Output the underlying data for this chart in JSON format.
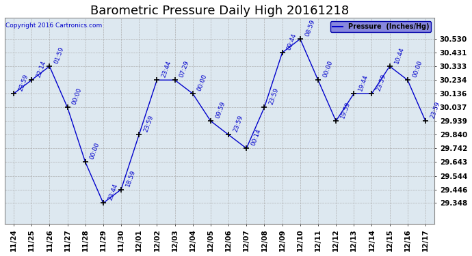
{
  "title": "Barometric Pressure Daily High 20161218",
  "copyright": "Copyright 2016 Cartronics.com",
  "legend_label": "Pressure  (Inches/Hg)",
  "background_color": "#ffffff",
  "plot_background": "#dde8f0",
  "line_color": "#0000cc",
  "marker_color": "#000000",
  "text_color": "#0000cc",
  "dates": [
    "11/24",
    "11/25",
    "11/26",
    "11/27",
    "11/28",
    "11/29",
    "11/30",
    "12/01",
    "12/02",
    "12/03",
    "12/04",
    "12/05",
    "12/06",
    "12/07",
    "12/08",
    "12/09",
    "12/10",
    "12/11",
    "12/12",
    "12/13",
    "12/14",
    "12/15",
    "12/16",
    "12/17"
  ],
  "values": [
    30.136,
    30.234,
    30.333,
    30.037,
    29.643,
    29.348,
    29.446,
    29.84,
    30.234,
    30.234,
    30.136,
    29.939,
    29.84,
    29.742,
    30.037,
    30.431,
    30.53,
    30.234,
    29.939,
    30.136,
    30.136,
    30.333,
    30.234,
    29.939
  ],
  "annotations": [
    "23:59",
    "22:14",
    "01:59",
    "00:00",
    "00:00",
    "23:44",
    "18:59",
    "23:59",
    "23:44",
    "07:29",
    "00:00",
    "09:59",
    "23:59",
    "00:14",
    "23:59",
    "09:44",
    "08:59",
    "00:00",
    "19:59",
    "19:44",
    "23:59",
    "10:44",
    "00:00",
    "23:59"
  ],
  "ylim": [
    29.2,
    30.68
  ],
  "yticks": [
    30.53,
    30.431,
    30.333,
    30.234,
    30.136,
    30.037,
    29.939,
    29.84,
    29.742,
    29.643,
    29.544,
    29.446,
    29.348
  ],
  "grid_color": "#aaaaaa",
  "title_fontsize": 13,
  "annotation_fontsize": 6.5,
  "tick_fontsize": 7.5
}
